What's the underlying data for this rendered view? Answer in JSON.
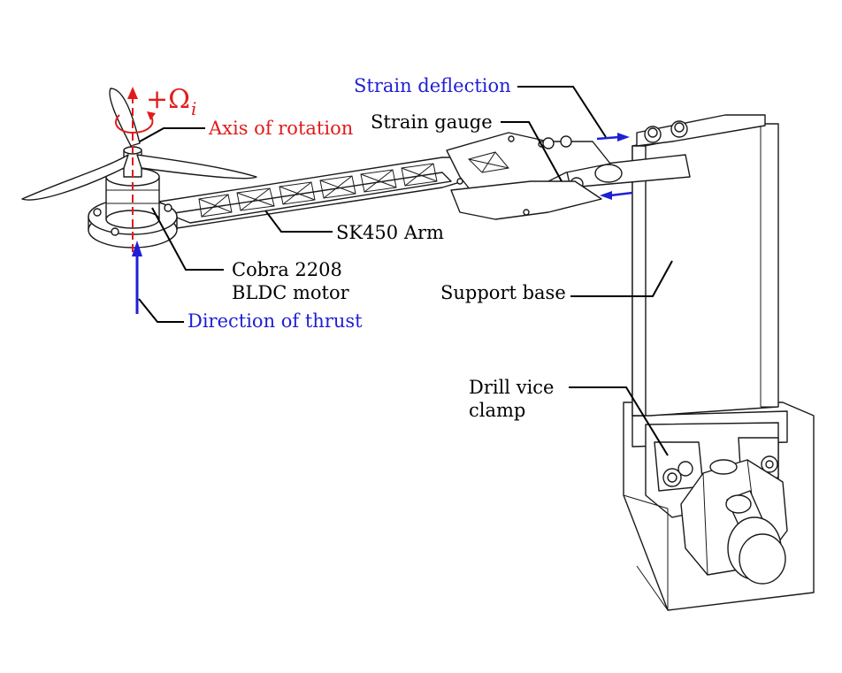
{
  "colors": {
    "annotation_blue": "#1f1fd6",
    "annotation_red": "#e11b1b",
    "line_black": "#000000"
  },
  "labels": {
    "strain_deflection": "Strain deflection",
    "strain_gauge": "Strain gauge",
    "axis_of_rotation": "Axis of rotation",
    "omega_sign": "+Ω",
    "omega_subscript": "i",
    "sk450_arm": "SK450 Arm",
    "motor_line1": "Cobra 2208",
    "motor_line2": "BLDC motor",
    "support_base": "Support base",
    "direction_of_thrust": "Direction of thrust",
    "clamp_line1": "Drill vice",
    "clamp_line2": "clamp"
  }
}
